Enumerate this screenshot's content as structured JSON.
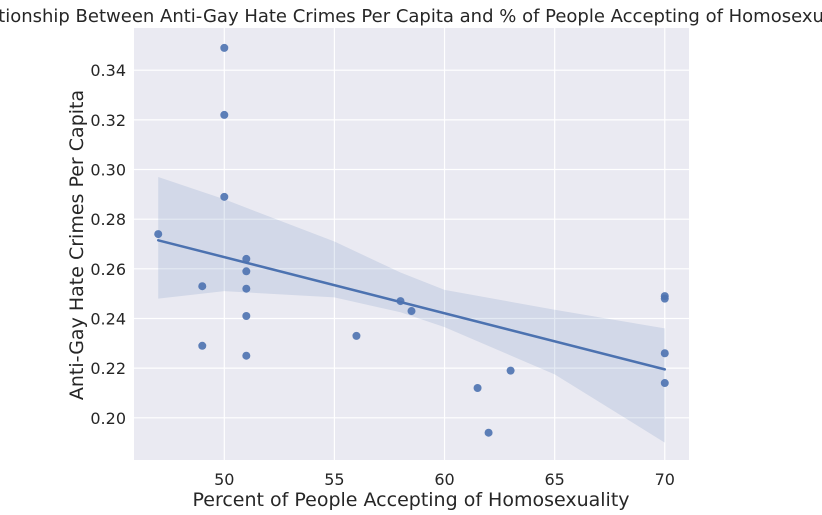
{
  "chart_data": {
    "type": "scatter",
    "title": "Relationship Between Anti-Gay Hate Crimes Per Capita and % of People Accepting of Homosexuality",
    "xlabel": "Percent of People Accepting of Homosexuality",
    "ylabel": "Anti-Gay Hate Crimes Per Capita",
    "xlim": [
      45.9,
      71.1
    ],
    "ylim": [
      0.183,
      0.357
    ],
    "x_ticks": [
      50,
      55,
      60,
      65,
      70
    ],
    "y_ticks": [
      0.2,
      0.22,
      0.24,
      0.26,
      0.28,
      0.3,
      0.32,
      0.34
    ],
    "x_tick_labels": [
      "50",
      "55",
      "60",
      "65",
      "70"
    ],
    "y_tick_labels": [
      "0.20",
      "0.22",
      "0.24",
      "0.26",
      "0.28",
      "0.30",
      "0.32",
      "0.34"
    ],
    "grid": true,
    "colors": {
      "background": "#eaeaf2",
      "grid": "#ffffff",
      "points": "#4c72b0",
      "line": "#4c72b0",
      "band": "#4c72b0"
    },
    "points": [
      {
        "x": 47.0,
        "y": 0.274
      },
      {
        "x": 49.0,
        "y": 0.253
      },
      {
        "x": 49.0,
        "y": 0.229
      },
      {
        "x": 50.0,
        "y": 0.349
      },
      {
        "x": 50.0,
        "y": 0.322
      },
      {
        "x": 50.0,
        "y": 0.289
      },
      {
        "x": 51.0,
        "y": 0.264
      },
      {
        "x": 51.0,
        "y": 0.259
      },
      {
        "x": 51.0,
        "y": 0.252
      },
      {
        "x": 51.0,
        "y": 0.241
      },
      {
        "x": 51.0,
        "y": 0.225
      },
      {
        "x": 56.0,
        "y": 0.233
      },
      {
        "x": 58.0,
        "y": 0.247
      },
      {
        "x": 58.5,
        "y": 0.243
      },
      {
        "x": 61.5,
        "y": 0.212
      },
      {
        "x": 62.0,
        "y": 0.194
      },
      {
        "x": 63.0,
        "y": 0.219
      },
      {
        "x": 70.0,
        "y": 0.249
      },
      {
        "x": 70.0,
        "y": 0.248
      },
      {
        "x": 70.0,
        "y": 0.226
      },
      {
        "x": 70.0,
        "y": 0.214
      }
    ],
    "regression": {
      "x": [
        47.0,
        70.0
      ],
      "y": [
        0.2715,
        0.2195
      ]
    },
    "confidence_band": {
      "x": [
        47.0,
        50.0,
        55.0,
        58.0,
        60.0,
        65.0,
        70.0
      ],
      "upper": [
        0.297,
        0.288,
        0.271,
        0.2585,
        0.2515,
        0.2435,
        0.236
      ],
      "lower": [
        0.248,
        0.251,
        0.2485,
        0.2425,
        0.2365,
        0.2175,
        0.19
      ]
    }
  }
}
